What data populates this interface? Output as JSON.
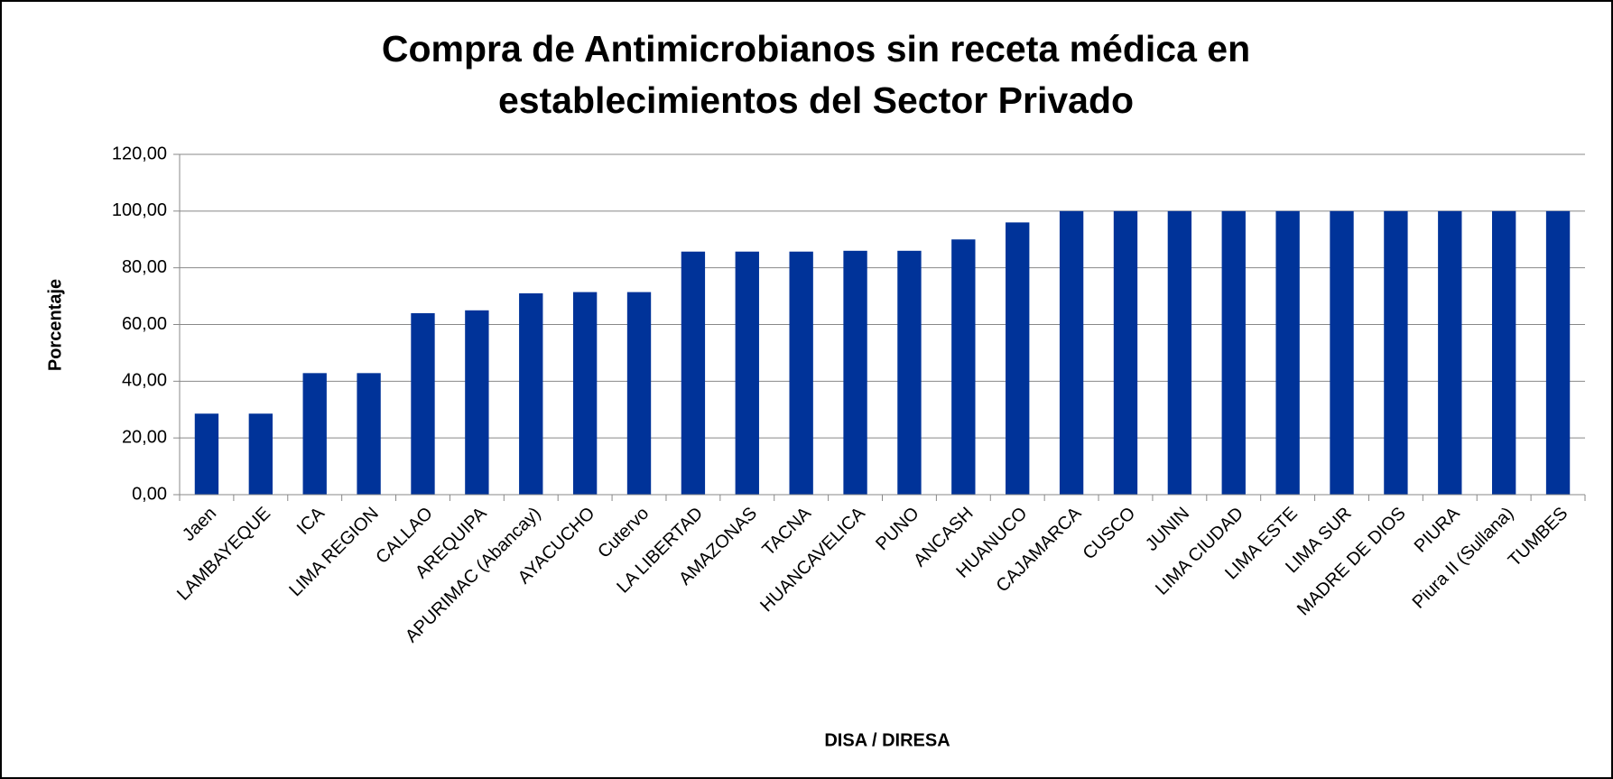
{
  "chart_data": {
    "type": "bar",
    "title": "Compra de Antimicrobianos sin receta médica en establecimientos del Sector Privado",
    "title_lines": [
      "Compra de Antimicrobianos sin receta médica en",
      "establecimientos del Sector Privado"
    ],
    "x_label": "DISA / DIRESA",
    "y_label": "Porcentaje",
    "categories": [
      "Jaen",
      "LAMBAYEQUE",
      "ICA",
      "LIMA REGION",
      "CALLAO",
      "AREQUIPA",
      "APURIMAC (Abancay)",
      "AYACUCHO",
      "Cutervo",
      "LA LIBERTAD",
      "AMAZONAS",
      "TACNA",
      "HUANCAVELICA",
      "PUNO",
      "ANCASH",
      "HUANUCO",
      "CAJAMARCA",
      "CUSCO",
      "JUNIN",
      "LIMA CIUDAD",
      "LIMA ESTE",
      "LIMA SUR",
      "MADRE DE DIOS",
      "PIURA",
      "Piura II (Sullana)",
      "TUMBES"
    ],
    "values": [
      28.57,
      28.57,
      42.86,
      42.86,
      64,
      65,
      71,
      71.43,
      71.43,
      85.71,
      85.71,
      85.71,
      86,
      86,
      90,
      96,
      100,
      100,
      100,
      100,
      100,
      100,
      100,
      100,
      100,
      100
    ],
    "color": "#003399",
    "ylim": [
      0,
      120
    ],
    "yticks": [
      {
        "value": 0,
        "label": "0,00"
      },
      {
        "value": 20,
        "label": "20,00"
      },
      {
        "value": 40,
        "label": "40,00"
      },
      {
        "value": 60,
        "label": "60,00"
      },
      {
        "value": 80,
        "label": "80,00"
      },
      {
        "value": 100,
        "label": "100,00"
      },
      {
        "value": 120,
        "label": "120,00"
      }
    ],
    "grid": true
  }
}
